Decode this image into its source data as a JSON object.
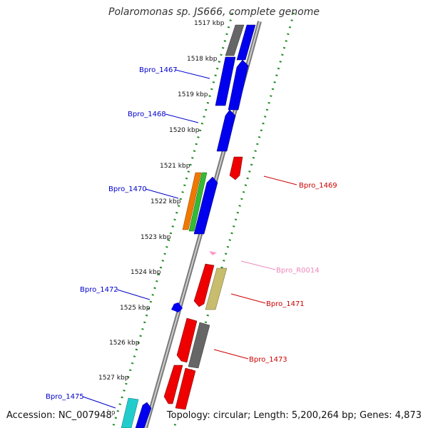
{
  "title": "Polaromonas sp. JS666, complete genome",
  "accession_label": "Accession: NC_007948",
  "summary_label": "Topology: circular; Length: 5,200,264 bp; Genes: 4,873",
  "kbp_ticks": [
    "1517 kbp",
    "1518 kbp",
    "1519 kbp",
    "1520 kbp",
    "1521 kbp",
    "1522 kbp",
    "1523 kbp",
    "1524 kbp",
    "1525 kbp",
    "1526 kbp",
    "1527 kbp"
  ],
  "partial_tick": "bp",
  "gene_labels": [
    {
      "name": "Bpro_1467",
      "color": "#0000cc"
    },
    {
      "name": "Bpro_1468",
      "color": "#0000cc"
    },
    {
      "name": "Bpro_1470",
      "color": "#0000cc"
    },
    {
      "name": "Bpro_1472",
      "color": "#0000cc"
    },
    {
      "name": "Bpro_1475",
      "color": "#0000cc"
    },
    {
      "name": "Bpro_1469",
      "color": "#cc0000"
    },
    {
      "name": "Bpro_R0014",
      "color": "#ee88bb"
    },
    {
      "name": "Bpro_1471",
      "color": "#cc0000"
    },
    {
      "name": "Bpro_1473",
      "color": "#cc0000"
    }
  ],
  "colors": {
    "blue": "#0000ee",
    "red": "#ee0000",
    "gray": "#666666",
    "orange": "#f07800",
    "green": "#33bb33",
    "khaki": "#c8bd6e",
    "cyan": "#22cccc",
    "pink": "#ff99cc",
    "backbone": "#888888",
    "dots": "#228b22"
  }
}
